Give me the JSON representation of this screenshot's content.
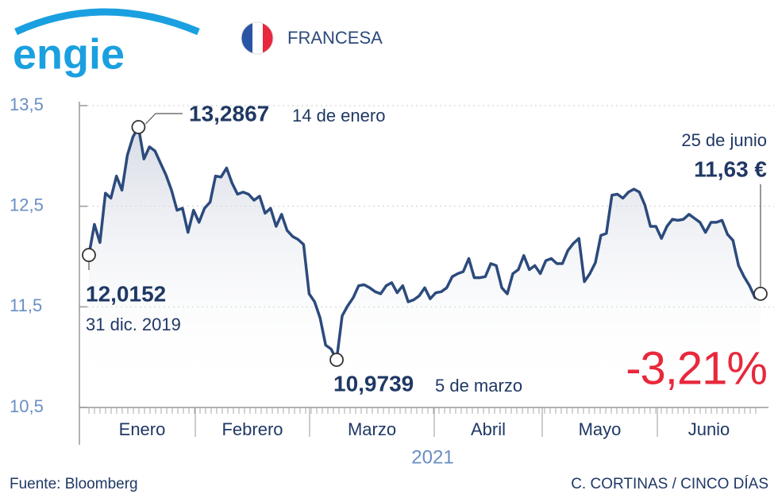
{
  "chart_data": {
    "type": "line",
    "brand": "engie",
    "subtitle": "FRANCESA",
    "color": "#2c4a7c",
    "values": [
      12.0152,
      12.32,
      12.14,
      12.63,
      12.58,
      12.8,
      12.66,
      13.01,
      13.19,
      13.2867,
      12.97,
      13.09,
      13.05,
      12.93,
      12.81,
      12.66,
      12.46,
      12.48,
      12.24,
      12.46,
      12.34,
      12.48,
      12.54,
      12.8,
      12.79,
      12.88,
      12.73,
      12.62,
      12.64,
      12.62,
      12.56,
      12.6,
      12.43,
      12.48,
      12.3,
      12.42,
      12.26,
      12.2,
      12.17,
      12.12,
      11.63,
      11.55,
      11.39,
      11.12,
      11.08,
      10.9739,
      11.41,
      11.51,
      11.59,
      11.71,
      11.72,
      11.69,
      11.65,
      11.63,
      11.71,
      11.74,
      11.64,
      11.71,
      11.55,
      11.57,
      11.61,
      11.69,
      11.58,
      11.64,
      11.65,
      11.69,
      11.8,
      11.83,
      11.85,
      11.98,
      11.79,
      11.79,
      11.8,
      11.93,
      11.91,
      11.69,
      11.63,
      11.83,
      11.87,
      12.01,
      11.87,
      11.91,
      11.83,
      11.96,
      11.98,
      11.93,
      11.93,
      12.06,
      12.13,
      12.18,
      11.75,
      11.83,
      11.94,
      12.21,
      12.23,
      12.61,
      12.62,
      12.58,
      12.64,
      12.67,
      12.64,
      12.51,
      12.3,
      12.3,
      12.18,
      12.3,
      12.37,
      12.36,
      12.37,
      12.42,
      12.38,
      12.34,
      12.24,
      12.34,
      12.34,
      12.36,
      12.22,
      12.16,
      11.91,
      11.8,
      11.71,
      11.59,
      11.63
    ],
    "months": [
      "Enero",
      "Febrero",
      "Marzo",
      "Abril",
      "Mayo",
      "Junio"
    ],
    "xlabel": "2021",
    "ylim": [
      10.5,
      13.5
    ],
    "yticks": [
      {
        "value": 10.5,
        "label": "10,5"
      },
      {
        "value": 11.5,
        "label": "11,5"
      },
      {
        "value": 12.5,
        "label": "12,5"
      },
      {
        "value": 13.5,
        "label": "13,5"
      }
    ],
    "grid": true,
    "annotations": [
      {
        "value": 12.0152,
        "label": "12,0152",
        "date": "31 dic. 2019"
      },
      {
        "value": 13.2867,
        "label": "13,2867",
        "date": "14 de enero"
      },
      {
        "value": 10.9739,
        "label": "10,9739",
        "date": "5 de marzo"
      },
      {
        "value": 11.63,
        "label": "11,63 €",
        "date": "25 de junio"
      }
    ],
    "change": {
      "value": -3.21,
      "label": "-3,21%"
    },
    "source": "Fuente: Bloomberg",
    "credit": "C. CORTINAS / CINCO DÍAS"
  }
}
